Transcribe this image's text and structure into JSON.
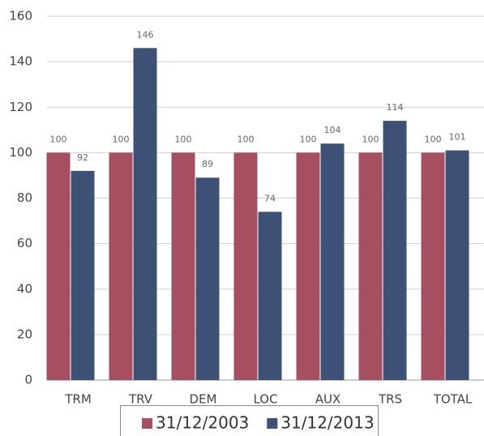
{
  "chart_data": {
    "type": "bar",
    "categories": [
      "TRM",
      "TRV",
      "DEM",
      "LOC",
      "AUX",
      "TRS",
      "TOTAL"
    ],
    "series": [
      {
        "name": "31/12/2003",
        "color": "#a54f61",
        "values": [
          100,
          100,
          100,
          100,
          100,
          100,
          100
        ]
      },
      {
        "name": "31/12/2013",
        "color": "#3d5177",
        "values": [
          92,
          146,
          89,
          74,
          104,
          114,
          101
        ]
      }
    ],
    "ylim": [
      0,
      160
    ],
    "yticks": [
      0,
      20,
      40,
      60,
      80,
      100,
      120,
      140,
      160
    ],
    "grid": true,
    "legend": "bottom"
  }
}
